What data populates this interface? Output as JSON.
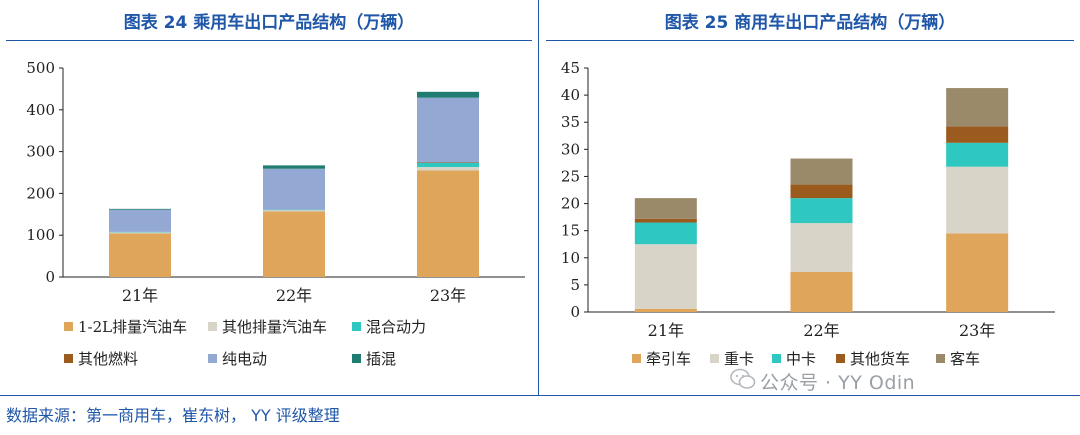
{
  "left_title": "图表 24 乘用车出口产品结构（万辆）",
  "right_title": "图表 25 商用车出口产品结构（万辆）",
  "source": "数据来源：第一商用车，崔东树， YY 评级整理",
  "watermark": "公众号 · YY Odin",
  "chart_data": [
    {
      "type": "bar",
      "stacked": true,
      "title": "图表 24 乘用车出口产品结构（万辆）",
      "categories": [
        "21年",
        "22年",
        "23年"
      ],
      "ylim": [
        0,
        500
      ],
      "yticks": [
        0,
        100,
        200,
        300,
        400,
        500
      ],
      "series": [
        {
          "name": "1-2L排量汽油车",
          "color": "#dfa55a",
          "values": [
            104,
            157,
            255
          ]
        },
        {
          "name": "其他排量汽油车",
          "color": "#d9d4c8",
          "values": [
            3,
            3,
            8
          ]
        },
        {
          "name": "混合动力",
          "color": "#2ec8c0",
          "values": [
            1,
            1,
            10
          ]
        },
        {
          "name": "其他燃料",
          "color": "#9b5b1e",
          "values": [
            0,
            0,
            1
          ]
        },
        {
          "name": "纯电动",
          "color": "#93a8d2",
          "values": [
            53,
            98,
            155
          ]
        },
        {
          "name": "插混",
          "color": "#1e7c70",
          "values": [
            2,
            8,
            14
          ]
        }
      ],
      "legend_position": "bottom"
    },
    {
      "type": "bar",
      "stacked": true,
      "title": "图表 25 商用车出口产品结构（万辆）",
      "categories": [
        "21年",
        "22年",
        "23年"
      ],
      "ylim": [
        0,
        45
      ],
      "yticks": [
        0,
        5,
        10,
        15,
        20,
        25,
        30,
        35,
        40,
        45
      ],
      "series": [
        {
          "name": "牵引车",
          "color": "#dfa55a",
          "values": [
            0.6,
            7.4,
            14.5
          ]
        },
        {
          "name": "重卡",
          "color": "#d9d4c8",
          "values": [
            11.9,
            9.0,
            12.3
          ]
        },
        {
          "name": "中卡",
          "color": "#2ec8c0",
          "values": [
            4.0,
            4.6,
            4.4
          ]
        },
        {
          "name": "其他货车",
          "color": "#9b5b1e",
          "values": [
            0.7,
            2.5,
            3.0
          ]
        },
        {
          "name": "客车",
          "color": "#9a8a6a",
          "values": [
            3.8,
            4.8,
            7.1
          ]
        }
      ],
      "legend_position": "bottom"
    }
  ]
}
